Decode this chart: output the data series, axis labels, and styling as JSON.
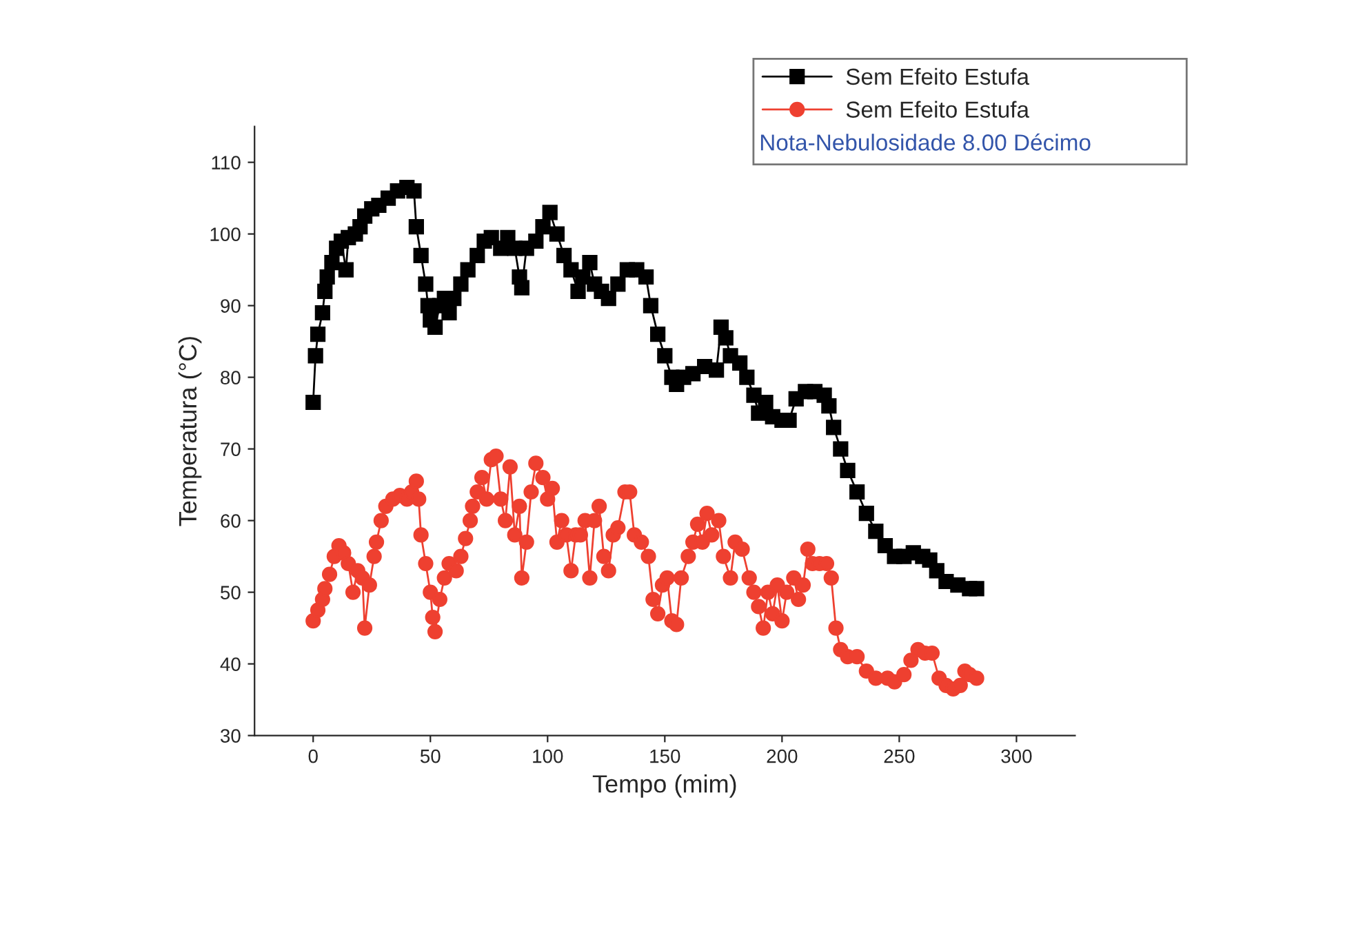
{
  "chart_data": {
    "type": "line",
    "xlabel": "Tempo (mim)",
    "ylabel": "Temperatura (°C)",
    "xlim": [
      -25,
      325
    ],
    "xticks": [
      0,
      50,
      100,
      150,
      200,
      250,
      300
    ],
    "ylim": [
      30,
      115
    ],
    "yticks": [
      30,
      40,
      50,
      60,
      70,
      80,
      90,
      100,
      110
    ],
    "grid": false,
    "legend": "top right",
    "annotations": [
      "Nota-Nebulosidade 8.00 Décimo"
    ],
    "series": [
      {
        "name": "Sem Efeito Estufa",
        "color": "#000000",
        "marker": "square",
        "x": [
          0,
          1,
          2,
          4,
          5,
          6,
          8,
          10,
          12,
          14,
          15,
          18,
          20,
          22,
          25,
          28,
          32,
          36,
          40,
          43,
          44,
          46,
          48,
          49,
          50,
          52,
          54,
          56,
          58,
          60,
          63,
          66,
          70,
          73,
          76,
          80,
          83,
          86,
          88,
          89,
          91,
          95,
          98,
          101,
          104,
          107,
          110,
          113,
          115,
          118,
          120,
          123,
          126,
          130,
          134,
          138,
          142,
          144,
          147,
          150,
          153,
          155,
          158,
          162,
          167,
          172,
          174,
          176,
          178,
          182,
          185,
          188,
          190,
          193,
          196,
          200,
          203,
          206,
          210,
          214,
          218,
          220,
          222,
          225,
          228,
          232,
          236,
          240,
          244,
          248,
          252,
          256,
          260,
          263,
          266,
          270,
          275,
          280,
          283
        ],
        "values": [
          76.5,
          83,
          86,
          89,
          92,
          94,
          96,
          98,
          99,
          95,
          99.5,
          100,
          101,
          102.5,
          103.5,
          104,
          105,
          106,
          106.5,
          106,
          101,
          97,
          93,
          90,
          88,
          87,
          90,
          91,
          89,
          91,
          93,
          95,
          97,
          99,
          99.5,
          98,
          99.5,
          98,
          94,
          92.5,
          98,
          99,
          101,
          103,
          100,
          97,
          95,
          92,
          94,
          96,
          93,
          92,
          91,
          93,
          95,
          95,
          94,
          90,
          86,
          83,
          80,
          79,
          80,
          80.5,
          81.5,
          81,
          87,
          85.5,
          83,
          82,
          80,
          77.5,
          75,
          76.5,
          74.5,
          74,
          74,
          77,
          78,
          78,
          77.5,
          76,
          73,
          70,
          67,
          64,
          61,
          58.5,
          56.5,
          55,
          55,
          55.5,
          55,
          54.5,
          53,
          51.5,
          51,
          50.5,
          50.5
        ]
      },
      {
        "name": "Sem Efeito Estufa",
        "color": "#ee4030",
        "marker": "circle",
        "x": [
          0,
          2,
          4,
          5,
          7,
          9,
          11,
          13,
          15,
          17,
          19,
          21,
          22,
          24,
          26,
          27,
          29,
          31,
          34,
          37,
          40,
          42,
          44,
          45,
          46,
          48,
          50,
          51,
          52,
          54,
          56,
          58,
          61,
          63,
          65,
          67,
          68,
          70,
          72,
          74,
          76,
          78,
          80,
          82,
          84,
          86,
          88,
          89,
          91,
          93,
          95,
          98,
          100,
          102,
          104,
          106,
          108,
          110,
          112,
          114,
          116,
          118,
          120,
          122,
          124,
          126,
          128,
          130,
          133,
          135,
          137,
          140,
          143,
          145,
          147,
          149,
          151,
          153,
          155,
          157,
          160,
          162,
          164,
          166,
          168,
          170,
          173,
          175,
          178,
          180,
          183,
          186,
          188,
          190,
          192,
          194,
          196,
          198,
          200,
          202,
          205,
          207,
          209,
          211,
          213,
          216,
          219,
          221,
          223,
          225,
          228,
          232,
          236,
          240,
          245,
          248,
          252,
          255,
          258,
          261,
          264,
          267,
          270,
          273,
          276,
          278,
          280,
          283
        ],
        "values": [
          46,
          47.5,
          49,
          50.5,
          52.5,
          55,
          56.5,
          55.5,
          54,
          50,
          53,
          52,
          45,
          51,
          55,
          57,
          60,
          62,
          63,
          63.5,
          63,
          64,
          65.5,
          63,
          58,
          54,
          50,
          46.5,
          44.5,
          49,
          52,
          54,
          53,
          55,
          57.5,
          60,
          62,
          64,
          66,
          63,
          68.5,
          69,
          63,
          60,
          67.5,
          58,
          62,
          52,
          57,
          64,
          68,
          66,
          63,
          64.5,
          57,
          60,
          58,
          53,
          58,
          58,
          60,
          52,
          60,
          62,
          55,
          53,
          58,
          59,
          64,
          64,
          58,
          57,
          55,
          49,
          47,
          51,
          52,
          46,
          45.5,
          52,
          55,
          57,
          59.5,
          57,
          61,
          58,
          60,
          55,
          52,
          57,
          56,
          52,
          50,
          48,
          45,
          50,
          47,
          51,
          46,
          50,
          52,
          49,
          51,
          56,
          54,
          54,
          54,
          52,
          45,
          42,
          41,
          41,
          39,
          38,
          38,
          37.5,
          38.5,
          40.5,
          42,
          41.5,
          41.5,
          38,
          37,
          36.5,
          37,
          39,
          38.5,
          38
        ]
      }
    ]
  }
}
